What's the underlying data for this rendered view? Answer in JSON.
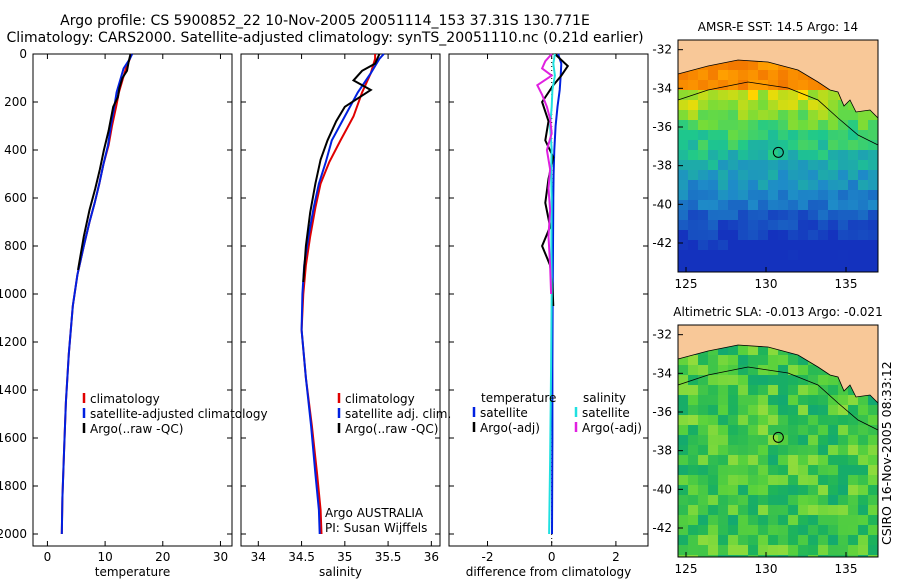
{
  "header": {
    "title_line1": "Argo profile: CS 5900852_22 10-Nov-2005 20051114_153 37.31S 130.771E",
    "title_line2": "Climatology: CARS2000. Satellite-adjusted climatology: synTS_20051110.nc (0.21d earlier)"
  },
  "colors": {
    "climatology": "#e00000",
    "satellite": "#0020e0",
    "argo": "#000000",
    "satellite_salinity": "#20e0e0",
    "argo_salinity_adj": "#e020e0",
    "land": "#f8c898"
  },
  "stamp": "CSIRO 16-Nov-2005 08:33:12",
  "chart_data": [
    {
      "type": "line",
      "xlabel": "temperature",
      "ylim": [
        2050,
        0
      ],
      "xlim": [
        -2.5,
        32
      ],
      "xticks": [
        "0",
        "10",
        "20",
        "30"
      ],
      "yticks": [
        "0",
        "200",
        "400",
        "600",
        "800",
        "1000",
        "1200",
        "1400",
        "1600",
        "1800",
        "2000"
      ],
      "legend": [
        "climatology",
        "satellite-adjusted climatology",
        "Argo(..raw -QC)"
      ],
      "series": [
        {
          "name": "climatology",
          "x": [
            14.5,
            14.3,
            13.6,
            13.0,
            12.4,
            11.9,
            11.2,
            10.6,
            9.7,
            9.0,
            8.2,
            7.3,
            6.3,
            5.2,
            4.4,
            3.7,
            3.2,
            2.9,
            2.6,
            2.5
          ],
          "y": [
            0,
            20,
            60,
            110,
            160,
            220,
            300,
            380,
            460,
            540,
            620,
            700,
            800,
            920,
            1050,
            1250,
            1450,
            1650,
            1850,
            2000
          ]
        },
        {
          "name": "satellite-adjusted climatology",
          "x": [
            14.7,
            14.3,
            13.2,
            12.6,
            12.0,
            11.6,
            11.0,
            10.5,
            9.7,
            9.0,
            8.2,
            7.3,
            6.3,
            5.2,
            4.4,
            3.7,
            3.2,
            2.9,
            2.6,
            2.5
          ],
          "y": [
            0,
            20,
            60,
            110,
            160,
            220,
            300,
            380,
            460,
            540,
            620,
            700,
            800,
            920,
            1050,
            1250,
            1450,
            1650,
            1850,
            2000
          ]
        },
        {
          "name": "Argo(..raw -QC)",
          "x": [
            14.4,
            14.1,
            13.8,
            13.0,
            12.5,
            12.2,
            11.4,
            11.0,
            10.6,
            9.8,
            9.1,
            8.3,
            7.3,
            6.3,
            5.3
          ],
          "y": [
            0,
            30,
            70,
            100,
            140,
            180,
            220,
            270,
            320,
            400,
            480,
            560,
            650,
            760,
            900
          ]
        }
      ]
    },
    {
      "type": "line",
      "xlabel": "salinity",
      "ylim": [
        2050,
        0
      ],
      "xlim": [
        33.8,
        36.1
      ],
      "xticks": [
        "34",
        "34.5",
        "35",
        "35.5",
        "36"
      ],
      "legend": [
        "climatology",
        "satellite adj. clim.",
        "Argo(..raw -QC)"
      ],
      "annotation": [
        "Argo AUSTRALIA",
        "PI: Susan Wijffels"
      ],
      "series": [
        {
          "name": "climatology",
          "x": [
            35.35,
            35.35,
            35.3,
            35.2,
            35.1,
            34.95,
            34.82,
            34.72,
            34.66,
            34.6,
            34.55,
            34.52,
            34.5,
            34.55,
            34.62,
            34.68,
            34.72,
            34.73
          ],
          "y": [
            0,
            20,
            80,
            160,
            260,
            360,
            450,
            540,
            640,
            760,
            880,
            1000,
            1150,
            1350,
            1550,
            1750,
            1900,
            2000
          ]
        },
        {
          "name": "satellite adj. clim.",
          "x": [
            35.45,
            35.4,
            35.3,
            35.15,
            35.0,
            34.85,
            34.78,
            34.7,
            34.64,
            34.58,
            34.53,
            34.51,
            34.5,
            34.55,
            34.61,
            34.66,
            34.7,
            34.71
          ],
          "y": [
            0,
            20,
            80,
            160,
            260,
            360,
            450,
            540,
            640,
            760,
            880,
            1000,
            1150,
            1350,
            1550,
            1750,
            1900,
            2000
          ]
        },
        {
          "name": "Argo(..raw -QC)",
          "x": [
            35.4,
            35.35,
            35.2,
            35.1,
            35.3,
            35.0,
            34.9,
            34.8,
            34.72,
            34.66,
            34.6,
            34.55,
            34.52
          ],
          "y": [
            0,
            40,
            70,
            110,
            150,
            220,
            280,
            360,
            440,
            540,
            660,
            800,
            950
          ]
        }
      ]
    },
    {
      "type": "line",
      "xlabel": "difference from climatology",
      "ylim": [
        2050,
        0
      ],
      "xlim": [
        -3.2,
        3.0
      ],
      "xticks": [
        "-2",
        "0",
        "2"
      ],
      "legend_temperature_heading": "temperature",
      "legend_salinity_heading": "salinity",
      "legend": [
        "satellite",
        "Argo(-adj)",
        "satellite",
        "Argo(-adj)"
      ],
      "series": [
        {
          "name": "temperature satellite",
          "x": [
            0.2,
            0.3,
            0.28,
            0.25,
            0.18,
            0.12,
            0.08,
            0.06,
            0.05,
            0.04,
            0.03,
            0.02,
            0.02,
            0.01
          ],
          "y": [
            0,
            40,
            90,
            150,
            220,
            300,
            400,
            500,
            600,
            800,
            1000,
            1300,
            1600,
            2000
          ]
        },
        {
          "name": "temperature Argo(-adj)",
          "x": [
            0.1,
            0.5,
            0.3,
            0.05,
            -0.3,
            -0.1,
            -0.2,
            0.05,
            -0.1,
            -0.2,
            -0.05,
            -0.3,
            -0.05,
            0.02,
            0.05
          ],
          "y": [
            0,
            50,
            90,
            130,
            200,
            280,
            360,
            430,
            520,
            620,
            720,
            800,
            880,
            960,
            1050
          ]
        },
        {
          "name": "salinity satellite",
          "x": [
            0.1,
            0.05,
            0.1,
            0.02,
            0.0,
            -0.05,
            0.0,
            -0.02,
            0.0,
            -0.01,
            0.0,
            -0.02,
            -0.05,
            -0.08
          ],
          "y": [
            0,
            40,
            90,
            150,
            220,
            300,
            400,
            500,
            600,
            800,
            1000,
            1300,
            1700,
            2000
          ]
        },
        {
          "name": "salinity Argo(-adj)",
          "x": [
            0.0,
            -0.2,
            -0.3,
            0.0,
            -0.45,
            -0.3,
            -0.15,
            -0.05,
            0.0,
            -0.15,
            -0.05,
            -0.1,
            -0.05,
            -0.1,
            -0.05,
            -0.02
          ],
          "y": [
            0,
            30,
            60,
            90,
            130,
            170,
            220,
            270,
            330,
            400,
            480,
            560,
            650,
            760,
            880,
            1000
          ]
        }
      ]
    },
    {
      "type": "heatmap",
      "title": "AMSR-E SST: 14.5  Argo: 14",
      "xlim": [
        124.5,
        137
      ],
      "ylim": [
        -43.5,
        -31.5
      ],
      "xticks": [
        "125",
        "130",
        "135"
      ],
      "yticks": [
        "-32",
        "-34",
        "-36",
        "-38",
        "-40",
        "-42"
      ],
      "marker": {
        "lon": 130.771,
        "lat": -37.31
      }
    },
    {
      "type": "heatmap",
      "title": "Altimetric SLA: -0.013  Argo: -0.021",
      "xlim": [
        124.5,
        137
      ],
      "ylim": [
        -43.5,
        -31.5
      ],
      "xticks": [
        "125",
        "130",
        "135"
      ],
      "yticks": [
        "-32",
        "-34",
        "-36",
        "-38",
        "-40",
        "-42"
      ],
      "marker": {
        "lon": 130.771,
        "lat": -37.31
      }
    }
  ]
}
